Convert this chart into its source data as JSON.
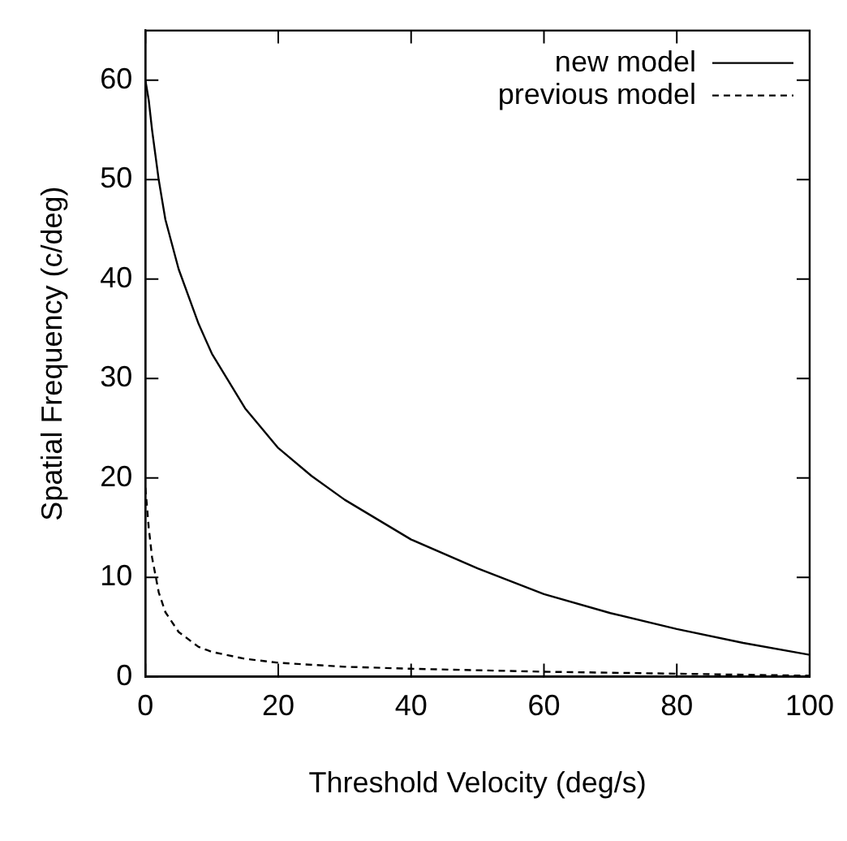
{
  "chart_data": {
    "type": "line",
    "xlabel": "Threshold Velocity (deg/s)",
    "ylabel": "Spatial Frequency (c/deg)",
    "xlim": [
      0,
      100
    ],
    "xticks": [
      0,
      20,
      40,
      60,
      80,
      100
    ],
    "ylim": [
      0,
      65
    ],
    "yticks": [
      0,
      10,
      20,
      30,
      40,
      50,
      60
    ],
    "grid": false,
    "legend": "top right",
    "marker": "none",
    "series": [
      {
        "name": "new model",
        "color": "#000000",
        "line_style": "solid",
        "x": [
          0,
          0.5,
          1,
          2,
          3,
          5,
          8,
          10,
          15,
          20,
          25,
          30,
          40,
          50,
          60,
          70,
          80,
          90,
          100
        ],
        "values": [
          60,
          58,
          55,
          50,
          46,
          41,
          35.5,
          32.5,
          27,
          23,
          20.2,
          17.8,
          13.8,
          10.9,
          8.3,
          6.4,
          4.8,
          3.4,
          2.2
        ]
      },
      {
        "name": "previous model",
        "color": "#000000",
        "line_style": "dashed",
        "x": [
          0,
          0.5,
          1,
          2,
          3,
          5,
          8,
          10,
          15,
          20,
          30,
          40,
          60,
          80,
          100
        ],
        "values": [
          19,
          15,
          12,
          8.5,
          6.5,
          4.5,
          3,
          2.5,
          1.8,
          1.4,
          1,
          0.8,
          0.5,
          0.3,
          0.1
        ]
      }
    ]
  }
}
